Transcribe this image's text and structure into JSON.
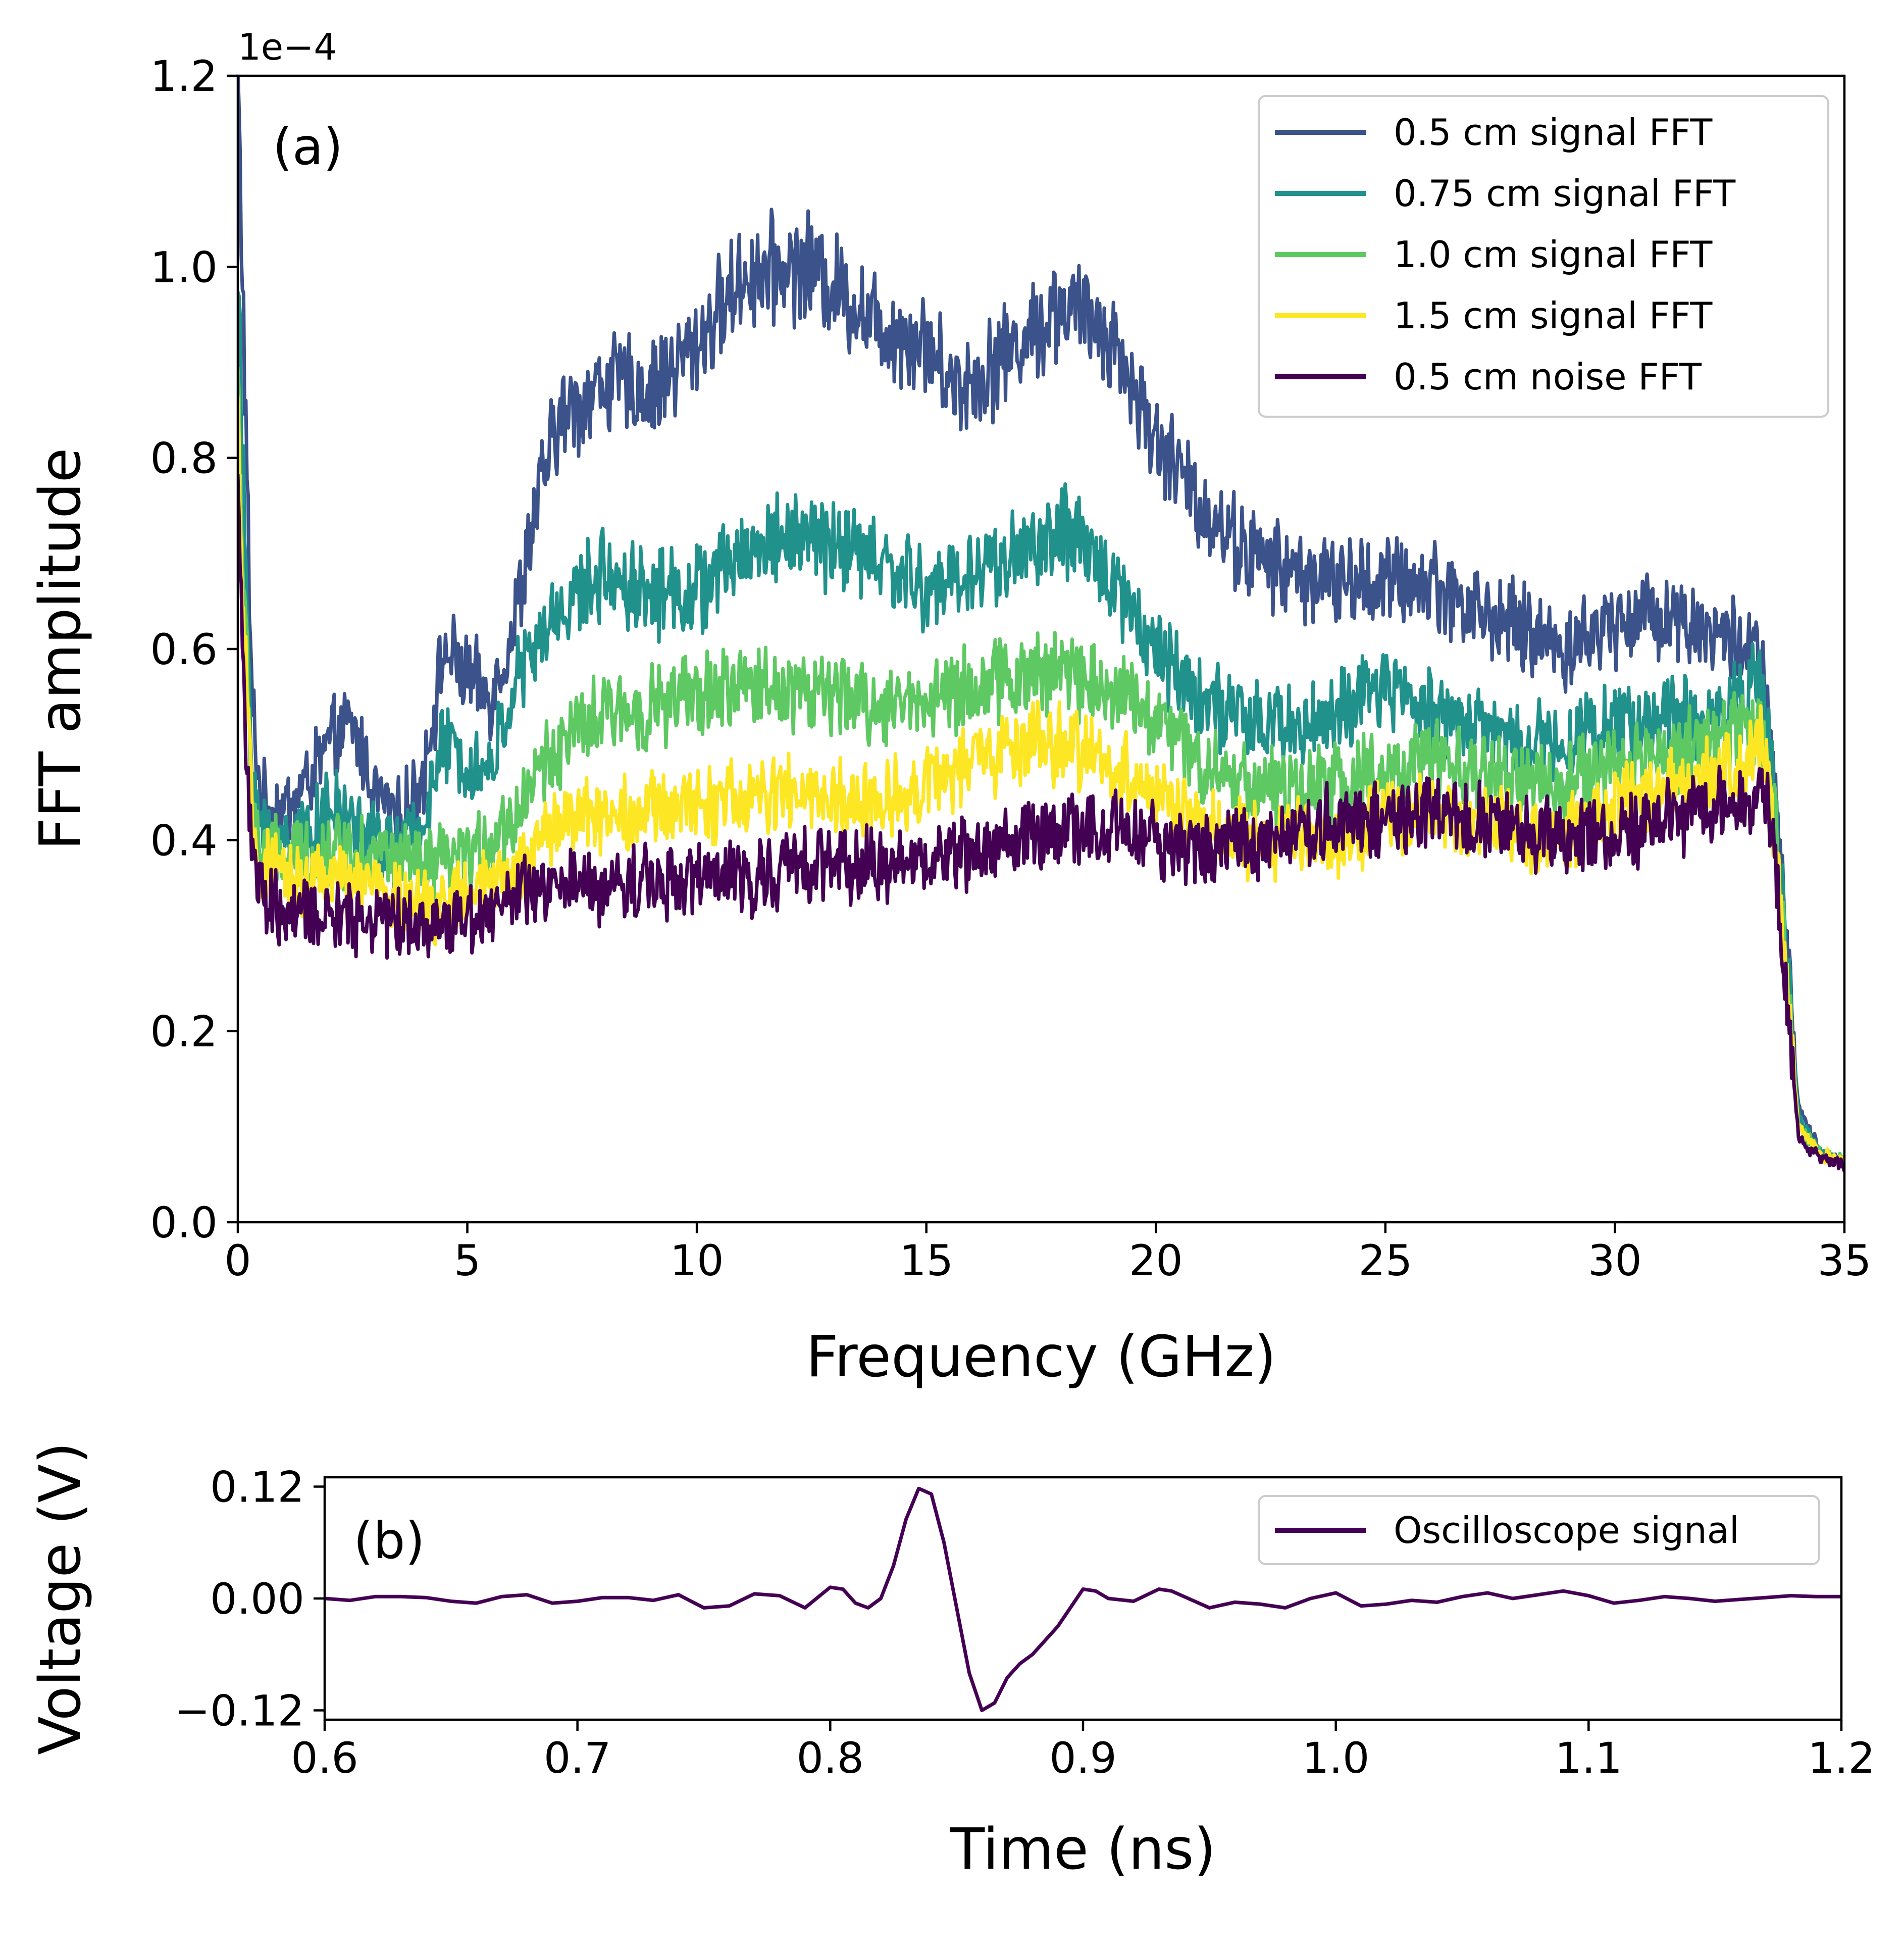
{
  "chart_data": [
    {
      "type": "line",
      "panel_label": "(a)",
      "xlabel": "Frequency (GHz)",
      "ylabel": "FFT amplitude",
      "y_offset_label": "1e−4",
      "xlim": [
        0,
        35
      ],
      "ylim": [
        0,
        1.2
      ],
      "xticks": [
        0,
        5,
        10,
        15,
        20,
        25,
        30,
        35
      ],
      "xtick_labels": [
        "0",
        "5",
        "10",
        "15",
        "20",
        "25",
        "30",
        "35"
      ],
      "yticks": [
        0,
        0.2,
        0.4,
        0.6,
        0.8,
        1.0,
        1.2
      ],
      "ytick_labels": [
        "0.0",
        "0.2",
        "0.4",
        "0.6",
        "0.8",
        "1.0",
        "1.2"
      ],
      "legend_position": "top-right",
      "grid": false,
      "series": [
        {
          "name": "0.5 cm signal FFT",
          "color": "#3b528b",
          "x": [
            0,
            0.1,
            0.3,
            0.5,
            1,
            1.5,
            2,
            2.5,
            3,
            3.5,
            4,
            4.5,
            5,
            5.5,
            6,
            6.5,
            7,
            8,
            9,
            10,
            11,
            12,
            12.5,
            13,
            14,
            15,
            15.5,
            16,
            17,
            18,
            19,
            20,
            21,
            22,
            23,
            24,
            25,
            26,
            27,
            28,
            29,
            30,
            31,
            32,
            33,
            33.2,
            33.5,
            34,
            34.5,
            35
          ],
          "values": [
            1.2,
            1.0,
            0.55,
            0.44,
            0.43,
            0.46,
            0.5,
            0.52,
            0.45,
            0.42,
            0.46,
            0.6,
            0.57,
            0.55,
            0.62,
            0.75,
            0.84,
            0.88,
            0.87,
            0.92,
            0.99,
            1.0,
            1.0,
            0.98,
            0.94,
            0.92,
            0.88,
            0.88,
            0.92,
            0.96,
            0.93,
            0.82,
            0.75,
            0.7,
            0.68,
            0.67,
            0.67,
            0.67,
            0.64,
            0.62,
            0.6,
            0.63,
            0.64,
            0.62,
            0.6,
            0.58,
            0.45,
            0.12,
            0.07,
            0.065
          ]
        },
        {
          "name": "0.75 cm signal FFT",
          "color": "#21918c",
          "x": [
            0,
            0.1,
            0.3,
            0.5,
            1,
            1.5,
            2,
            2.5,
            3,
            3.5,
            4,
            4.5,
            5,
            5.5,
            6,
            6.5,
            7,
            8,
            9,
            10,
            11,
            12,
            13,
            14,
            15,
            16,
            17,
            18,
            19,
            20,
            21,
            22,
            23,
            24,
            25,
            26,
            27,
            28,
            29,
            30,
            31,
            32,
            33,
            33.2,
            33.5,
            34,
            34.5,
            35
          ],
          "values": [
            1.0,
            0.8,
            0.48,
            0.41,
            0.4,
            0.41,
            0.43,
            0.42,
            0.4,
            0.39,
            0.42,
            0.5,
            0.48,
            0.47,
            0.56,
            0.6,
            0.64,
            0.68,
            0.66,
            0.66,
            0.7,
            0.72,
            0.71,
            0.69,
            0.66,
            0.68,
            0.7,
            0.72,
            0.68,
            0.6,
            0.55,
            0.52,
            0.52,
            0.53,
            0.56,
            0.54,
            0.52,
            0.5,
            0.51,
            0.52,
            0.53,
            0.52,
            0.57,
            0.56,
            0.43,
            0.11,
            0.07,
            0.065
          ]
        },
        {
          "name": "1.0 cm signal FFT",
          "color": "#5ec962",
          "x": [
            0,
            0.1,
            0.3,
            0.5,
            1,
            2,
            3,
            4,
            5,
            6,
            6.5,
            7,
            8,
            9,
            10,
            11,
            12,
            13,
            14,
            15,
            16,
            17,
            18,
            19,
            20,
            21,
            22,
            23,
            24,
            25,
            26,
            27,
            28,
            29,
            30,
            31,
            32,
            33,
            33.2,
            33.5,
            34,
            34.5,
            35
          ],
          "values": [
            0.9,
            0.7,
            0.45,
            0.39,
            0.38,
            0.39,
            0.39,
            0.37,
            0.38,
            0.42,
            0.47,
            0.5,
            0.53,
            0.54,
            0.55,
            0.56,
            0.56,
            0.55,
            0.54,
            0.55,
            0.56,
            0.57,
            0.58,
            0.56,
            0.53,
            0.48,
            0.46,
            0.45,
            0.46,
            0.47,
            0.48,
            0.47,
            0.46,
            0.46,
            0.48,
            0.49,
            0.5,
            0.52,
            0.52,
            0.42,
            0.1,
            0.07,
            0.065
          ]
        },
        {
          "name": "1.5 cm signal FFT",
          "color": "#fde725",
          "x": [
            0,
            0.1,
            0.3,
            0.5,
            1,
            2,
            3,
            4,
            5,
            6,
            6.5,
            7,
            8,
            9,
            10,
            11,
            12,
            13,
            14,
            15,
            16,
            17,
            18,
            19,
            20,
            21,
            22,
            23,
            24,
            25,
            26,
            27,
            28,
            29,
            30,
            31,
            32,
            33,
            33.2,
            33.5,
            34,
            34.5,
            35
          ],
          "values": [
            0.85,
            0.65,
            0.43,
            0.37,
            0.36,
            0.36,
            0.35,
            0.33,
            0.34,
            0.36,
            0.4,
            0.42,
            0.43,
            0.43,
            0.44,
            0.44,
            0.45,
            0.44,
            0.44,
            0.46,
            0.48,
            0.5,
            0.5,
            0.48,
            0.45,
            0.41,
            0.4,
            0.4,
            0.4,
            0.42,
            0.43,
            0.42,
            0.41,
            0.41,
            0.43,
            0.45,
            0.46,
            0.49,
            0.5,
            0.4,
            0.1,
            0.07,
            0.065
          ]
        },
        {
          "name": "0.5 cm noise FFT",
          "color": "#440154",
          "x": [
            0,
            0.1,
            0.3,
            0.5,
            1,
            2,
            3,
            4,
            5,
            6,
            7,
            8,
            9,
            10,
            11,
            12,
            13,
            14,
            15,
            16,
            17,
            18,
            19,
            20,
            21,
            22,
            23,
            24,
            25,
            26,
            27,
            28,
            29,
            30,
            31,
            32,
            33,
            33.2,
            33.5,
            34,
            34.5,
            35
          ],
          "values": [
            0.8,
            0.6,
            0.38,
            0.34,
            0.32,
            0.32,
            0.32,
            0.31,
            0.32,
            0.34,
            0.35,
            0.35,
            0.36,
            0.36,
            0.36,
            0.37,
            0.38,
            0.37,
            0.38,
            0.39,
            0.4,
            0.41,
            0.41,
            0.4,
            0.39,
            0.4,
            0.41,
            0.42,
            0.42,
            0.43,
            0.42,
            0.41,
            0.4,
            0.41,
            0.42,
            0.43,
            0.45,
            0.47,
            0.38,
            0.09,
            0.065,
            0.06
          ]
        }
      ]
    },
    {
      "type": "line",
      "panel_label": "(b)",
      "xlabel": "Time (ns)",
      "ylabel": "Voltage (V)",
      "xlim": [
        0.6,
        1.2
      ],
      "ylim": [
        -0.13,
        0.13
      ],
      "xticks": [
        0.6,
        0.7,
        0.8,
        0.9,
        1.0,
        1.1,
        1.2
      ],
      "xtick_labels": [
        "0.6",
        "0.7",
        "0.8",
        "0.9",
        "1.0",
        "1.1",
        "1.2"
      ],
      "yticks": [
        -0.12,
        0.0,
        0.12
      ],
      "ytick_labels": [
        "−0.12",
        "0.00",
        "0.12"
      ],
      "legend_position": "top-right",
      "grid": false,
      "series": [
        {
          "name": "Oscilloscope signal",
          "color": "#440154",
          "x": [
            0.6,
            0.61,
            0.62,
            0.63,
            0.64,
            0.65,
            0.66,
            0.67,
            0.68,
            0.69,
            0.7,
            0.71,
            0.72,
            0.73,
            0.74,
            0.75,
            0.76,
            0.77,
            0.78,
            0.79,
            0.8,
            0.805,
            0.81,
            0.815,
            0.82,
            0.825,
            0.83,
            0.835,
            0.84,
            0.845,
            0.85,
            0.855,
            0.86,
            0.865,
            0.87,
            0.875,
            0.88,
            0.89,
            0.9,
            0.905,
            0.91,
            0.92,
            0.93,
            0.935,
            0.94,
            0.95,
            0.96,
            0.97,
            0.98,
            0.99,
            1.0,
            1.01,
            1.02,
            1.03,
            1.04,
            1.05,
            1.06,
            1.07,
            1.08,
            1.09,
            1.1,
            1.11,
            1.12,
            1.13,
            1.14,
            1.15,
            1.16,
            1.17,
            1.18,
            1.19,
            1.2
          ],
          "values": [
            0.0,
            -0.002,
            0.002,
            0.002,
            0.001,
            -0.003,
            -0.005,
            0.002,
            0.004,
            -0.005,
            -0.003,
            0.001,
            0.001,
            -0.002,
            0.004,
            -0.01,
            -0.008,
            0.005,
            0.003,
            -0.01,
            0.012,
            0.01,
            -0.005,
            -0.01,
            0.0,
            0.035,
            0.085,
            0.118,
            0.112,
            0.06,
            -0.01,
            -0.08,
            -0.12,
            -0.112,
            -0.085,
            -0.07,
            -0.06,
            -0.03,
            0.01,
            0.008,
            0.0,
            -0.003,
            0.01,
            0.008,
            0.002,
            -0.01,
            -0.004,
            -0.006,
            -0.01,
            0.0,
            0.006,
            -0.008,
            -0.006,
            -0.002,
            -0.004,
            0.002,
            0.006,
            0.0,
            0.004,
            0.008,
            0.003,
            -0.005,
            -0.002,
            0.002,
            0.0,
            -0.003,
            -0.001,
            0.001,
            0.003,
            0.002,
            0.002
          ]
        }
      ]
    }
  ]
}
